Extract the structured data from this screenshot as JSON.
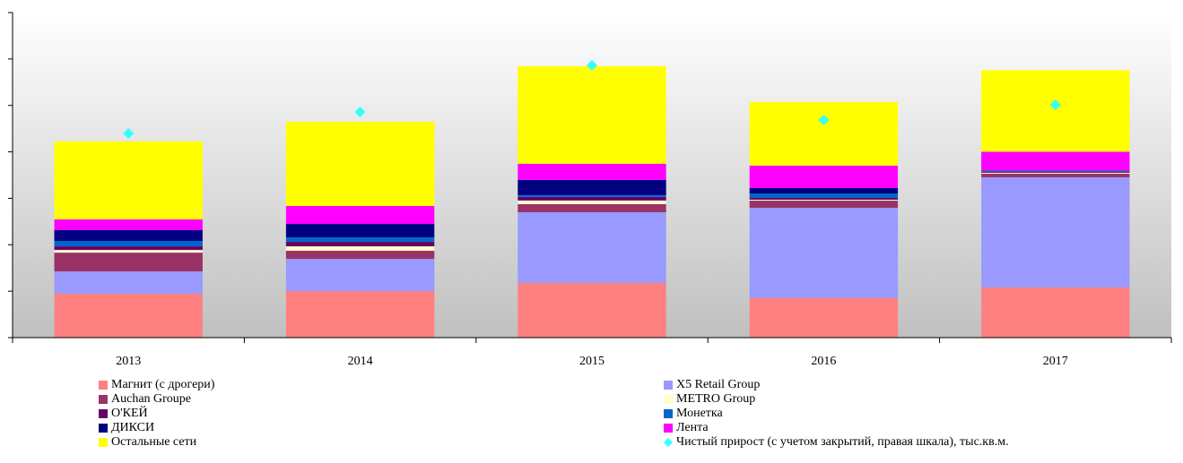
{
  "chart_data": {
    "type": "stacked_bar",
    "categories": [
      "2013",
      "2014",
      "2015",
      "2016",
      "2017"
    ],
    "series": [
      {
        "name": "Магнит (с дрогери)",
        "color": "#ff8080",
        "values": [
          472,
          501,
          588,
          424,
          540
        ]
      },
      {
        "name": "X5 Retail Group",
        "color": "#9999ff",
        "values": [
          241,
          347,
          762,
          974,
          1186
        ]
      },
      {
        "name": "Auchan Groupe",
        "color": "#993366",
        "values": [
          202,
          87,
          87,
          77,
          39
        ]
      },
      {
        "name": "METRO Group",
        "color": "#ffffcc",
        "values": [
          29,
          48,
          39,
          10,
          10
        ]
      },
      {
        "name": "О'КЕЙ",
        "color": "#660066",
        "values": [
          39,
          48,
          39,
          19,
          10
        ]
      },
      {
        "name": "Монетка",
        "color": "#0066cc",
        "values": [
          58,
          48,
          19,
          48,
          10
        ]
      },
      {
        "name": "ДИКСИ",
        "color": "#000080",
        "values": [
          116,
          145,
          164,
          58,
          5
        ]
      },
      {
        "name": "Лента",
        "color": "#ff00ff",
        "values": [
          116,
          193,
          174,
          241,
          202
        ]
      },
      {
        "name": "Остальные сети",
        "color": "#ffff00",
        "values": [
          839,
          906,
          1051,
          685,
          877
        ]
      },
      {
        "name": "Чистый прирост (с учетом закрытий, правая шкала), тыс.кв.м.",
        "color": "#33ffff",
        "type": "scatter",
        "axis": "y2",
        "values": [
          2198,
          2429,
          2931,
          2343,
          2507
        ]
      }
    ],
    "ylim": [
      0,
      3500
    ],
    "yticks": [
      0,
      500,
      1000,
      1500,
      2000,
      2500,
      3000,
      3500
    ],
    "y2lim": [
      0,
      3500
    ]
  }
}
